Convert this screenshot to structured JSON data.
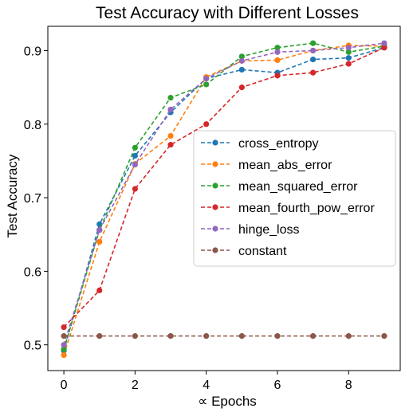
{
  "chart_data": {
    "type": "line",
    "title": "Test Accuracy with Different Losses",
    "xlabel": "∝ Epochs",
    "ylabel": "Test Accuracy",
    "xlim": [
      -0.45,
      9.45
    ],
    "ylim": [
      0.465,
      0.933
    ],
    "xticks": [
      0,
      2,
      4,
      6,
      8
    ],
    "yticks": [
      0.5,
      0.6,
      0.7,
      0.8,
      0.9
    ],
    "ytick_labels": [
      "0.5",
      "0.6",
      "0.7",
      "0.8",
      "0.9"
    ],
    "legend_position": "center-right",
    "grid": false,
    "x": [
      0,
      1,
      2,
      3,
      4,
      5,
      6,
      7,
      8,
      9
    ],
    "series": [
      {
        "name": "cross_entropy",
        "color": "#1f77b4",
        "values": [
          0.492,
          0.664,
          0.757,
          0.816,
          0.862,
          0.874,
          0.87,
          0.888,
          0.89,
          0.904
        ]
      },
      {
        "name": "mean_abs_error",
        "color": "#ff7f0e",
        "values": [
          0.486,
          0.64,
          0.746,
          0.784,
          0.864,
          0.886,
          0.887,
          0.9,
          0.907,
          0.906
        ]
      },
      {
        "name": "mean_squared_error",
        "color": "#2ca02c",
        "values": [
          0.494,
          0.656,
          0.768,
          0.836,
          0.854,
          0.892,
          0.904,
          0.91,
          0.898,
          0.906
        ]
      },
      {
        "name": "mean_fourth_pow_error",
        "color": "#d62728",
        "values": [
          0.524,
          0.574,
          0.712,
          0.772,
          0.8,
          0.85,
          0.866,
          0.87,
          0.882,
          0.904
        ]
      },
      {
        "name": "hinge_loss",
        "color": "#9467bd",
        "values": [
          0.5,
          0.656,
          0.745,
          0.82,
          0.862,
          0.886,
          0.898,
          0.9,
          0.904,
          0.91
        ]
      },
      {
        "name": "constant",
        "color": "#8c564b",
        "values": [
          0.512,
          0.512,
          0.512,
          0.512,
          0.512,
          0.512,
          0.512,
          0.512,
          0.512,
          0.512
        ]
      }
    ]
  }
}
